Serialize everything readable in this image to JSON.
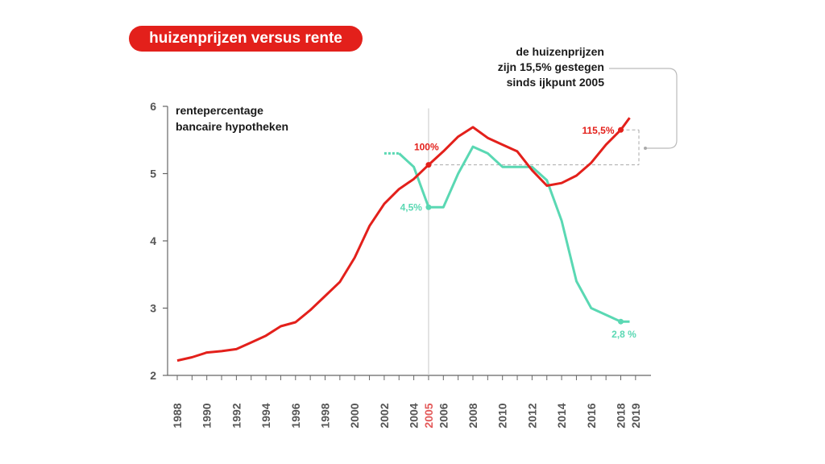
{
  "title": "huizenprijzen versus rente",
  "legend": {
    "line1": "rentepercentage",
    "line2": "bancaire hypotheken"
  },
  "annotation": {
    "line1": "de huizenprijzen",
    "line2": "zijn 15,5% gestegen",
    "line3": "sinds ijkpunt 2005"
  },
  "labels": {
    "hp_2005": "100%",
    "hp_2018": "115,5%",
    "rate_2005": "4,5%",
    "rate_2018": "2,8 %"
  },
  "colors": {
    "house_prices": "#e3201b",
    "interest_rate": "#5ad8b3",
    "highlight_year": "#e35a5a"
  },
  "chart_data": {
    "type": "line",
    "title": "huizenprijzen versus rente",
    "ylim": [
      2,
      6
    ],
    "yticks": [
      2,
      3,
      4,
      5,
      6
    ],
    "xlim": [
      1987.5,
      2019.5
    ],
    "xticks": [
      1988,
      1990,
      1992,
      1994,
      1996,
      1998,
      2000,
      2002,
      2004,
      2005,
      2006,
      2008,
      2010,
      2012,
      2014,
      2016,
      2018,
      2019
    ],
    "highlight_x": 2005,
    "series": [
      {
        "name": "huizenprijzen",
        "x": [
          1988,
          1989,
          1990,
          1991,
          1992,
          1993,
          1994,
          1995,
          1996,
          1997,
          1998,
          1999,
          2000,
          2001,
          2002,
          2003,
          2004,
          2005,
          2006,
          2007,
          2008,
          2009,
          2010,
          2011,
          2012,
          2013,
          2014,
          2015,
          2016,
          2017,
          2018,
          2018.6
        ],
        "values": [
          2.22,
          2.27,
          2.34,
          2.36,
          2.39,
          2.49,
          2.59,
          2.73,
          2.79,
          2.97,
          3.18,
          3.39,
          3.75,
          4.22,
          4.55,
          4.77,
          4.92,
          5.13,
          5.33,
          5.55,
          5.69,
          5.53,
          5.43,
          5.33,
          5.05,
          4.82,
          4.86,
          4.97,
          5.16,
          5.43,
          5.65,
          5.83
        ]
      },
      {
        "name": "rentepercentage bancaire hypotheken",
        "x": [
          2003,
          2004,
          2005,
          2006,
          2007,
          2008,
          2009,
          2010,
          2011,
          2012,
          2013,
          2014,
          2015,
          2016,
          2017,
          2018,
          2018.6
        ],
        "values": [
          5.3,
          5.1,
          4.5,
          4.5,
          5.0,
          5.4,
          5.3,
          5.1,
          5.1,
          5.1,
          4.9,
          4.3,
          3.4,
          3.0,
          2.9,
          2.8,
          2.8
        ],
        "dotted_lead_in": {
          "x": [
            2002,
            2003
          ],
          "values": [
            5.3,
            5.3
          ]
        }
      }
    ]
  }
}
